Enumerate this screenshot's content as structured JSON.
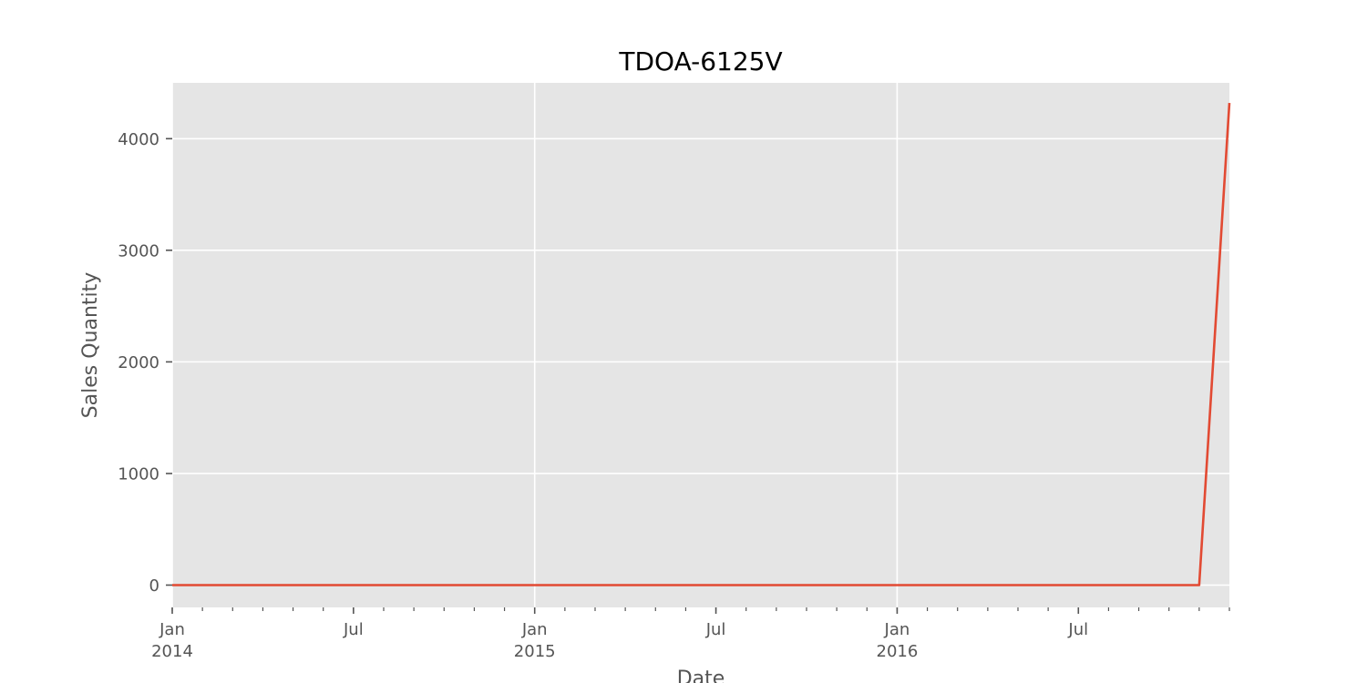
{
  "chart_data": {
    "type": "line",
    "title": "TDOA-6125V",
    "xlabel": "Date",
    "ylabel": "Sales Quantity",
    "x_range": [
      "2014-01-01",
      "2016-12-01"
    ],
    "ylim": [
      -200,
      4500
    ],
    "grid": true,
    "y_ticks": [
      {
        "value": 0,
        "label": "0"
      },
      {
        "value": 1000,
        "label": "1000"
      },
      {
        "value": 2000,
        "label": "2000"
      },
      {
        "value": 3000,
        "label": "3000"
      },
      {
        "value": 4000,
        "label": "4000"
      }
    ],
    "x_major_ticks": [
      {
        "date": "2014-01-01",
        "label": "Jan",
        "year": "2014",
        "gridline": true
      },
      {
        "date": "2014-07-01",
        "label": "Jul",
        "year": "",
        "gridline": false
      },
      {
        "date": "2015-01-01",
        "label": "Jan",
        "year": "2015",
        "gridline": true
      },
      {
        "date": "2015-07-01",
        "label": "Jul",
        "year": "",
        "gridline": false
      },
      {
        "date": "2016-01-01",
        "label": "Jan",
        "year": "2016",
        "gridline": true
      },
      {
        "date": "2016-07-01",
        "label": "Jul",
        "year": "",
        "gridline": false
      }
    ],
    "series": [
      {
        "color": "#E24A33",
        "x": [
          "2014-01-01",
          "2014-02-01",
          "2014-03-01",
          "2014-04-01",
          "2014-05-01",
          "2014-06-01",
          "2014-07-01",
          "2014-08-01",
          "2014-09-01",
          "2014-10-01",
          "2014-11-01",
          "2014-12-01",
          "2015-01-01",
          "2015-02-01",
          "2015-03-01",
          "2015-04-01",
          "2015-05-01",
          "2015-06-01",
          "2015-07-01",
          "2015-08-01",
          "2015-09-01",
          "2015-10-01",
          "2015-11-01",
          "2015-12-01",
          "2016-01-01",
          "2016-02-01",
          "2016-03-01",
          "2016-04-01",
          "2016-05-01",
          "2016-06-01",
          "2016-07-01",
          "2016-08-01",
          "2016-09-01",
          "2016-10-01",
          "2016-11-01",
          "2016-12-01"
        ],
        "values": [
          0,
          0,
          0,
          0,
          0,
          0,
          0,
          0,
          0,
          0,
          0,
          0,
          0,
          0,
          0,
          0,
          0,
          0,
          0,
          0,
          0,
          0,
          0,
          0,
          0,
          0,
          0,
          0,
          0,
          0,
          0,
          0,
          0,
          0,
          0,
          4320
        ]
      }
    ]
  },
  "colors": {
    "plot_background": "#E5E5E5",
    "grid": "#FFFFFF",
    "tick_text": "#555555",
    "title_text": "#000000"
  }
}
